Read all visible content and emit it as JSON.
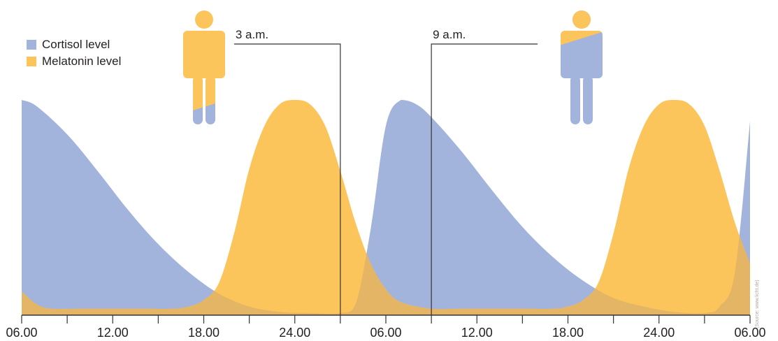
{
  "colors": {
    "cortisol": "#a2b3dc",
    "melatonin": "#fbc55c",
    "overlap": "#e4b565",
    "axis": "#333333",
    "text": "#231f20"
  },
  "legend": [
    {
      "label": "Cortisol level",
      "color": "#a2b3dc"
    },
    {
      "label": "Melatonin level",
      "color": "#fbc55c"
    }
  ],
  "annotations": [
    {
      "label": "3 a.m.",
      "hour": 27
    },
    {
      "label": "9 a.m.",
      "hour": 33
    }
  ],
  "source_note": "(Source: www.licht.de)",
  "chart_data": {
    "type": "area",
    "title": "",
    "xlabel": "",
    "ylabel": "",
    "x_hours": [
      6,
      12,
      18,
      24,
      30,
      36,
      42,
      48,
      54
    ],
    "tick_labels": [
      "06.00",
      "12.00",
      "18.00",
      "24.00",
      "06.00",
      "12.00",
      "18.00",
      "24.00",
      "06.00"
    ],
    "xlim": [
      6,
      54
    ],
    "ylim": [
      0,
      1
    ],
    "grid": false,
    "legend_position": "top-left",
    "series": [
      {
        "name": "Cortisol level",
        "x": [
          6,
          7,
          9,
          11,
          13,
          15,
          17,
          19,
          21,
          23,
          25,
          27,
          28,
          29,
          30,
          31,
          32,
          33,
          35,
          37,
          39,
          41,
          43,
          45,
          47,
          49,
          51,
          52,
          53,
          54
        ],
        "values": [
          1.0,
          0.97,
          0.84,
          0.67,
          0.49,
          0.33,
          0.2,
          0.1,
          0.04,
          0.015,
          0.01,
          0.01,
          0.05,
          0.4,
          0.88,
          1.0,
          0.98,
          0.92,
          0.76,
          0.58,
          0.41,
          0.27,
          0.16,
          0.08,
          0.04,
          0.015,
          0.01,
          0.04,
          0.2,
          0.9
        ]
      },
      {
        "name": "Melatonin level",
        "x": [
          6,
          7,
          8,
          10,
          12,
          14,
          16,
          17,
          18,
          19,
          20,
          21,
          22,
          23,
          24,
          25,
          26,
          27,
          28,
          29,
          30,
          31,
          33,
          35,
          37,
          39,
          41,
          42,
          43,
          44,
          45,
          46,
          47,
          48,
          49,
          50,
          51,
          52,
          53,
          54
        ],
        "values": [
          0.11,
          0.05,
          0.03,
          0.03,
          0.03,
          0.03,
          0.03,
          0.04,
          0.07,
          0.15,
          0.38,
          0.68,
          0.88,
          0.98,
          1.0,
          0.98,
          0.88,
          0.67,
          0.43,
          0.24,
          0.12,
          0.06,
          0.03,
          0.03,
          0.03,
          0.03,
          0.03,
          0.04,
          0.07,
          0.15,
          0.38,
          0.68,
          0.88,
          0.98,
          1.0,
          0.98,
          0.88,
          0.67,
          0.43,
          0.24
        ]
      }
    ]
  }
}
